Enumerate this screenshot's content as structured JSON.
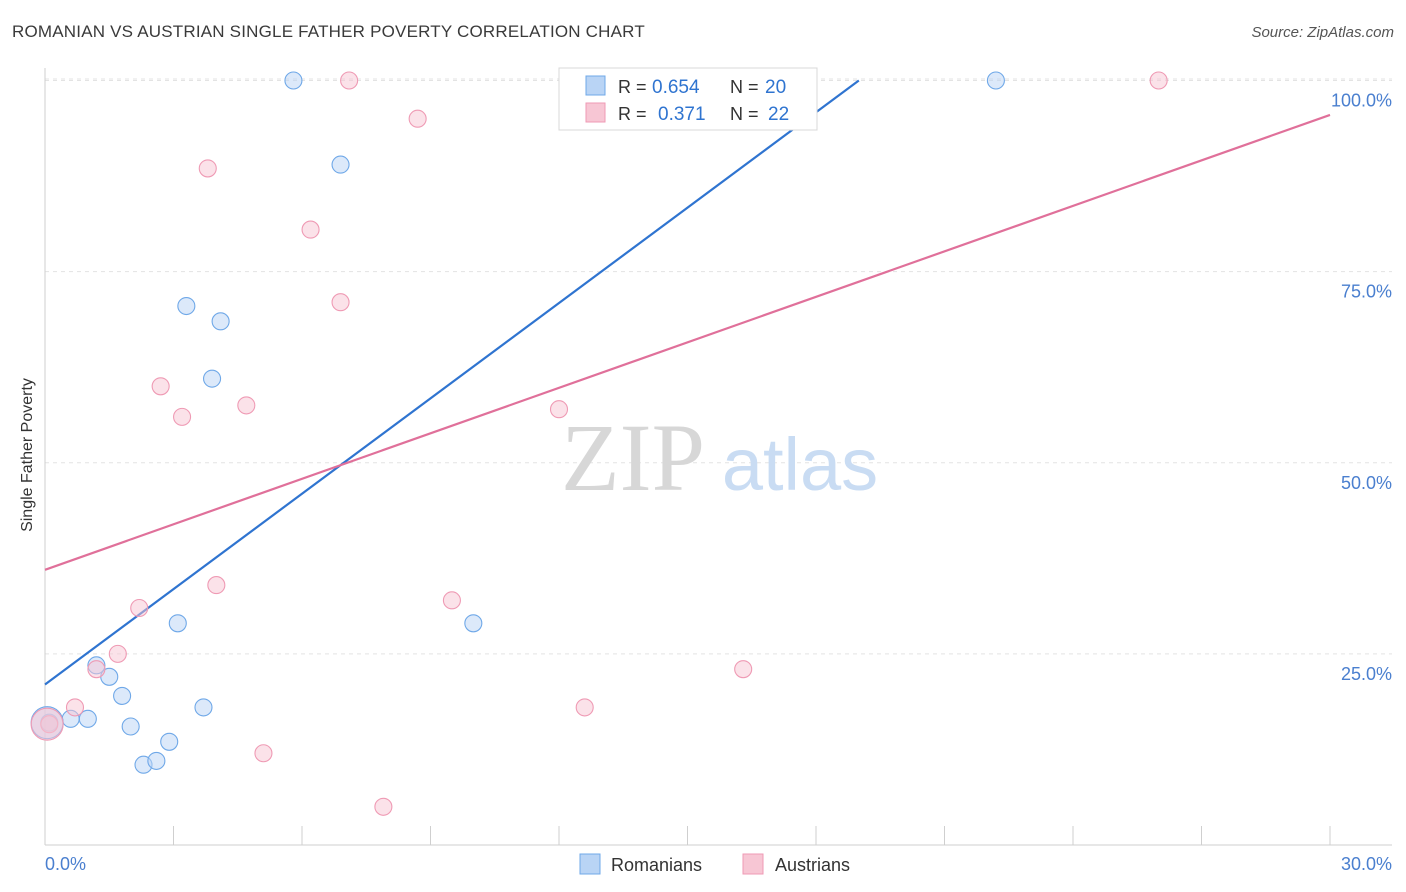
{
  "title": "ROMANIAN VS AUSTRIAN SINGLE FATHER POVERTY CORRELATION CHART",
  "source": "Source: ZipAtlas.com",
  "watermark": {
    "zip": "ZIP",
    "atlas": "atlas"
  },
  "legend_box": {
    "rows": [
      {
        "r_label": "R =",
        "r_value": "0.654",
        "n_label": "N =",
        "n_value": "20"
      },
      {
        "r_label": "R =",
        "r_value": "0.371",
        "n_label": "N =",
        "n_value": "22"
      }
    ]
  },
  "chart_data": {
    "type": "scatter",
    "xlabel": "",
    "ylabel": "Single Father Poverty",
    "xlim": [
      0,
      30
    ],
    "ylim": [
      0,
      103
    ],
    "x_tick_labels": [
      "0.0%",
      "30.0%"
    ],
    "y_ticks": [
      25,
      50,
      75,
      100
    ],
    "y_tick_labels": [
      "25.0%",
      "50.0%",
      "75.0%",
      "100.0%"
    ],
    "grid": "horizontal dashed",
    "legend_placement": "bottom-center",
    "colors": {
      "romanians": "#6fa8e8",
      "romanians_fill": "#b9d4f5",
      "romanians_line": "#2f74d0",
      "austrians": "#ef9ab4",
      "austrians_fill": "#f7c6d4",
      "austrians_line": "#e0709a",
      "tick_text": "#4a7fcf"
    },
    "series": [
      {
        "name": "Romanians",
        "points": [
          [
            0.1,
            16.0
          ],
          [
            0.6,
            16.5
          ],
          [
            1.0,
            16.5
          ],
          [
            1.2,
            23.5
          ],
          [
            1.5,
            22.0
          ],
          [
            1.8,
            19.5
          ],
          [
            2.0,
            15.5
          ],
          [
            2.3,
            10.5
          ],
          [
            2.6,
            11.0
          ],
          [
            2.9,
            13.5
          ],
          [
            3.1,
            29.0
          ],
          [
            3.3,
            70.5
          ],
          [
            3.7,
            18.0
          ],
          [
            3.9,
            61.0
          ],
          [
            4.1,
            68.5
          ],
          [
            5.8,
            100.0
          ],
          [
            6.9,
            89.0
          ],
          [
            10.0,
            29.0
          ],
          [
            22.2,
            100.0
          ],
          [
            0.05,
            16.0
          ]
        ],
        "trend": [
          [
            0.0,
            21.0
          ],
          [
            19.0,
            100.0
          ]
        ]
      },
      {
        "name": "Austrians",
        "points": [
          [
            0.1,
            15.8
          ],
          [
            0.7,
            18.0
          ],
          [
            1.2,
            23.0
          ],
          [
            1.7,
            25.0
          ],
          [
            2.2,
            31.0
          ],
          [
            2.7,
            60.0
          ],
          [
            3.2,
            56.0
          ],
          [
            3.8,
            88.5
          ],
          [
            4.0,
            34.0
          ],
          [
            4.7,
            57.5
          ],
          [
            5.1,
            12.0
          ],
          [
            6.2,
            80.5
          ],
          [
            6.9,
            71.0
          ],
          [
            7.1,
            100.0
          ],
          [
            7.9,
            5.0
          ],
          [
            8.7,
            95.0
          ],
          [
            9.5,
            32.0
          ],
          [
            12.0,
            57.0
          ],
          [
            12.6,
            18.0
          ],
          [
            16.3,
            23.0
          ],
          [
            26.0,
            100.0
          ],
          [
            0.05,
            15.8
          ]
        ],
        "trend": [
          [
            0.0,
            36.0
          ],
          [
            30.0,
            95.5
          ]
        ]
      }
    ]
  },
  "bottom_legend": {
    "items": [
      {
        "label": "Romanians"
      },
      {
        "label": "Austrians"
      }
    ]
  }
}
